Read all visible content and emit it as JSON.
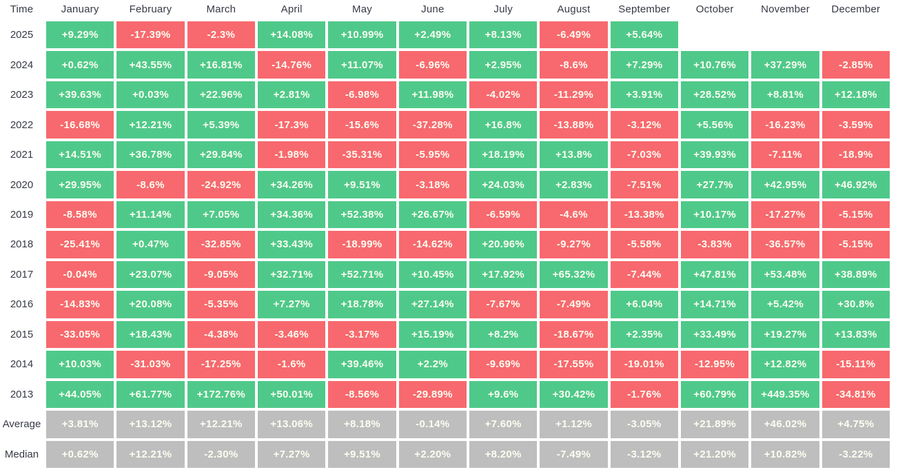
{
  "colors": {
    "positive": "#4fc98a",
    "negative": "#f7696e",
    "summary": "#bebebe",
    "cell_text": "#fdfdf2",
    "label_text": "#363a45",
    "background": "#ffffff"
  },
  "chart_data": {
    "type": "heatmap",
    "corner_label": "Time",
    "x_categories": [
      "January",
      "February",
      "March",
      "April",
      "May",
      "June",
      "July",
      "August",
      "September",
      "October",
      "November",
      "December"
    ],
    "y_categories": [
      "2025",
      "2024",
      "2023",
      "2022",
      "2021",
      "2020",
      "2019",
      "2018",
      "2017",
      "2016",
      "2015",
      "2014",
      "2013",
      "Average",
      "Median"
    ],
    "legend": "green = positive monthly return, red = negative monthly return, gray = summary rows",
    "rows": [
      {
        "label": "2025",
        "kind": "year",
        "values": [
          "+9.29%",
          "-17.39%",
          "-2.3%",
          "+14.08%",
          "+10.99%",
          "+2.49%",
          "+8.13%",
          "-6.49%",
          "+5.64%",
          null,
          null,
          null
        ]
      },
      {
        "label": "2024",
        "kind": "year",
        "values": [
          "+0.62%",
          "+43.55%",
          "+16.81%",
          "-14.76%",
          "+11.07%",
          "-6.96%",
          "+2.95%",
          "-8.6%",
          "+7.29%",
          "+10.76%",
          "+37.29%",
          "-2.85%"
        ]
      },
      {
        "label": "2023",
        "kind": "year",
        "values": [
          "+39.63%",
          "+0.03%",
          "+22.96%",
          "+2.81%",
          "-6.98%",
          "+11.98%",
          "-4.02%",
          "-11.29%",
          "+3.91%",
          "+28.52%",
          "+8.81%",
          "+12.18%"
        ]
      },
      {
        "label": "2022",
        "kind": "year",
        "values": [
          "-16.68%",
          "+12.21%",
          "+5.39%",
          "-17.3%",
          "-15.6%",
          "-37.28%",
          "+16.8%",
          "-13.88%",
          "-3.12%",
          "+5.56%",
          "-16.23%",
          "-3.59%"
        ]
      },
      {
        "label": "2021",
        "kind": "year",
        "values": [
          "+14.51%",
          "+36.78%",
          "+29.84%",
          "-1.98%",
          "-35.31%",
          "-5.95%",
          "+18.19%",
          "+13.8%",
          "-7.03%",
          "+39.93%",
          "-7.11%",
          "-18.9%"
        ]
      },
      {
        "label": "2020",
        "kind": "year",
        "values": [
          "+29.95%",
          "-8.6%",
          "-24.92%",
          "+34.26%",
          "+9.51%",
          "-3.18%",
          "+24.03%",
          "+2.83%",
          "-7.51%",
          "+27.7%",
          "+42.95%",
          "+46.92%"
        ]
      },
      {
        "label": "2019",
        "kind": "year",
        "values": [
          "-8.58%",
          "+11.14%",
          "+7.05%",
          "+34.36%",
          "+52.38%",
          "+26.67%",
          "-6.59%",
          "-4.6%",
          "-13.38%",
          "+10.17%",
          "-17.27%",
          "-5.15%"
        ]
      },
      {
        "label": "2018",
        "kind": "year",
        "values": [
          "-25.41%",
          "+0.47%",
          "-32.85%",
          "+33.43%",
          "-18.99%",
          "-14.62%",
          "+20.96%",
          "-9.27%",
          "-5.58%",
          "-3.83%",
          "-36.57%",
          "-5.15%"
        ]
      },
      {
        "label": "2017",
        "kind": "year",
        "values": [
          "-0.04%",
          "+23.07%",
          "-9.05%",
          "+32.71%",
          "+52.71%",
          "+10.45%",
          "+17.92%",
          "+65.32%",
          "-7.44%",
          "+47.81%",
          "+53.48%",
          "+38.89%"
        ]
      },
      {
        "label": "2016",
        "kind": "year",
        "values": [
          "-14.83%",
          "+20.08%",
          "-5.35%",
          "+7.27%",
          "+18.78%",
          "+27.14%",
          "-7.67%",
          "-7.49%",
          "+6.04%",
          "+14.71%",
          "+5.42%",
          "+30.8%"
        ]
      },
      {
        "label": "2015",
        "kind": "year",
        "values": [
          "-33.05%",
          "+18.43%",
          "-4.38%",
          "-3.46%",
          "-3.17%",
          "+15.19%",
          "+8.2%",
          "-18.67%",
          "+2.35%",
          "+33.49%",
          "+19.27%",
          "+13.83%"
        ]
      },
      {
        "label": "2014",
        "kind": "year",
        "values": [
          "+10.03%",
          "-31.03%",
          "-17.25%",
          "-1.6%",
          "+39.46%",
          "+2.2%",
          "-9.69%",
          "-17.55%",
          "-19.01%",
          "-12.95%",
          "+12.82%",
          "-15.11%"
        ]
      },
      {
        "label": "2013",
        "kind": "year",
        "values": [
          "+44.05%",
          "+61.77%",
          "+172.76%",
          "+50.01%",
          "-8.56%",
          "-29.89%",
          "+9.6%",
          "+30.42%",
          "-1.76%",
          "+60.79%",
          "+449.35%",
          "-34.81%"
        ]
      },
      {
        "label": "Average",
        "kind": "summary",
        "values": [
          "+3.81%",
          "+13.12%",
          "+12.21%",
          "+13.06%",
          "+8.18%",
          "-0.14%",
          "+7.60%",
          "+1.12%",
          "-3.05%",
          "+21.89%",
          "+46.02%",
          "+4.75%"
        ]
      },
      {
        "label": "Median",
        "kind": "summary",
        "values": [
          "+0.62%",
          "+12.21%",
          "-2.30%",
          "+7.27%",
          "+9.51%",
          "+2.20%",
          "+8.20%",
          "-7.49%",
          "-3.12%",
          "+21.20%",
          "+10.82%",
          "-3.22%"
        ]
      }
    ]
  }
}
